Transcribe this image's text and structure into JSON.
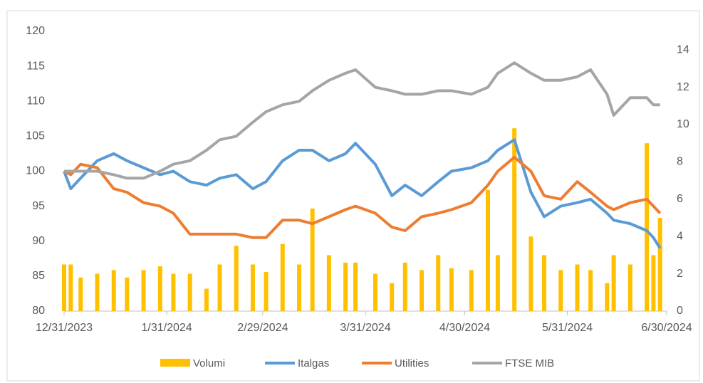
{
  "chart_data": {
    "type": "combo",
    "x": [
      "12/31/2023",
      "1/2/2024",
      "1/5/2024",
      "1/10/2024",
      "1/15/2024",
      "1/19/2024",
      "1/24/2024",
      "1/29/2024",
      "2/2/2024",
      "2/7/2024",
      "2/12/2024",
      "2/16/2024",
      "2/21/2024",
      "2/26/2024",
      "3/1/2024",
      "3/6/2024",
      "3/11/2024",
      "3/15/2024",
      "3/20/2024",
      "3/25/2024",
      "3/28/2024",
      "4/3/2024",
      "4/8/2024",
      "4/12/2024",
      "4/17/2024",
      "4/22/2024",
      "4/26/2024",
      "5/2/2024",
      "5/7/2024",
      "5/10/2024",
      "5/15/2024",
      "5/20/2024",
      "5/24/2024",
      "5/29/2024",
      "6/3/2024",
      "6/7/2024",
      "6/12/2024",
      "6/14/2024",
      "6/19/2024",
      "6/24/2024",
      "6/26/2024",
      "6/28/2024"
    ],
    "xlim": [
      "12/31/2023",
      "6/30/2024"
    ],
    "xticks": [
      "12/31/2023",
      "1/31/2024",
      "2/29/2024",
      "3/31/2024",
      "4/30/2024",
      "5/31/2024",
      "6/30/2024"
    ],
    "ylim": [
      80,
      120
    ],
    "yticks": [
      80,
      85,
      90,
      95,
      100,
      105,
      110,
      115,
      120
    ],
    "y2lim": [
      0,
      15
    ],
    "y2ticks": [
      0,
      2,
      4,
      6,
      8,
      10,
      12,
      14
    ],
    "legend": "bottom",
    "series": [
      {
        "name": "Volumi",
        "type": "bar",
        "axis": "y2",
        "color": "#ffc000",
        "values": [
          2.5,
          2.5,
          1.8,
          2.0,
          2.2,
          1.8,
          2.2,
          2.4,
          2.0,
          2.0,
          1.2,
          2.5,
          3.5,
          2.5,
          2.1,
          3.6,
          2.5,
          5.5,
          3.0,
          2.6,
          2.6,
          2.0,
          1.5,
          2.6,
          2.2,
          3.0,
          2.3,
          2.2,
          6.5,
          3.0,
          9.8,
          4.0,
          3.0,
          2.2,
          2.5,
          2.2,
          1.5,
          3.0,
          2.5,
          9.0,
          3.0,
          5.0
        ]
      },
      {
        "name": "Italgas",
        "type": "line",
        "color": "#5b9bd5",
        "values": [
          100,
          97.5,
          99,
          101.5,
          102.5,
          101.5,
          100.5,
          99.5,
          100,
          98.5,
          98,
          99,
          99.5,
          97.5,
          98.5,
          101.5,
          103,
          103,
          101.5,
          102.5,
          104,
          101,
          96.5,
          98,
          96.5,
          98.5,
          100,
          100.5,
          101.5,
          103,
          104.5,
          97,
          93.5,
          95,
          95.5,
          96,
          94,
          93,
          92.5,
          91.5,
          90.5,
          89
        ]
      },
      {
        "name": "Utilities",
        "type": "line",
        "color": "#ed7d31",
        "values": [
          100,
          99.5,
          101,
          100.5,
          97.5,
          97,
          95.5,
          95,
          94,
          91,
          91,
          91,
          91,
          90.5,
          90.5,
          93,
          93,
          92.5,
          93.5,
          94.5,
          95,
          94,
          92,
          91.5,
          93.5,
          94,
          94.5,
          95.5,
          98,
          100,
          102,
          100,
          96.5,
          96,
          98.5,
          97,
          95,
          94.5,
          95.5,
          96,
          95,
          94
        ]
      },
      {
        "name": "FTSE MIB",
        "type": "line",
        "color": "#a5a5a5",
        "values": [
          100,
          100,
          100,
          100,
          99.5,
          99,
          99,
          100,
          101,
          101.5,
          103,
          104.5,
          105,
          107,
          108.5,
          109.5,
          110,
          111.5,
          113,
          114,
          114.5,
          112,
          111.5,
          111,
          111,
          111.5,
          111.5,
          111,
          112,
          114,
          115.5,
          114,
          113,
          113,
          113.5,
          114.5,
          111,
          108,
          110.5,
          110.5,
          109.5,
          109.5
        ]
      }
    ]
  }
}
